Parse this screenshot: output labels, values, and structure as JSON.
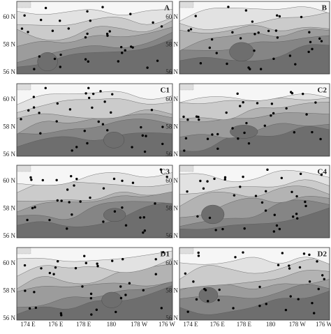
{
  "panels": [
    {
      "label": "A"
    },
    {
      "label": "B"
    },
    {
      "label": "C1"
    },
    {
      "label": "C2"
    },
    {
      "label": "C3"
    },
    {
      "label": "C4"
    },
    {
      "label": "D1"
    },
    {
      "label": "D2"
    }
  ],
  "y_labels": [
    "60 N",
    "58 N",
    "56 N"
  ],
  "x_labels": [
    "174 E",
    "176 E",
    "178 E",
    "180",
    "178 W",
    "176 W"
  ]
}
